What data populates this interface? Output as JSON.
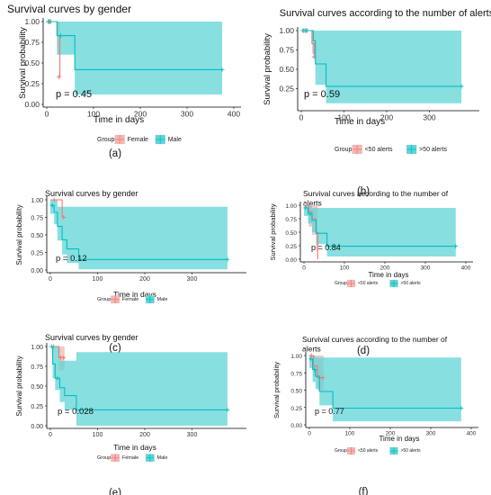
{
  "chart_data": [
    {
      "type": "line",
      "title": "Survival curves by gender",
      "xlabel": "Time in days",
      "ylabel": "Survival probability",
      "xlim": [
        0,
        400
      ],
      "ylim": [
        0,
        1
      ],
      "xticks": [
        0,
        100,
        200,
        300,
        400
      ],
      "yticks": [
        "0.00",
        "0.25",
        "0.50",
        "0.75",
        "1.00"
      ],
      "pvalue": "p = 0.45",
      "legend_title": "Group",
      "legend": [
        "Female",
        "Male"
      ],
      "series": [
        {
          "name": "Female",
          "color": "#f8766d",
          "steps": [
            [
              0,
              1.0
            ],
            [
              12,
              1.0
            ],
            [
              22,
              0.83
            ],
            [
              28,
              0.33
            ]
          ],
          "band": [
            [
              0,
              1.0,
              1.0
            ],
            [
              12,
              1.0,
              1.0
            ],
            [
              22,
              0.6,
              1.0
            ],
            [
              28,
              0.05,
              1.0
            ]
          ],
          "censor": [
            [
              5,
              1.0
            ],
            [
              9,
              1.0
            ],
            [
              26,
              0.33
            ]
          ]
        },
        {
          "name": "Male",
          "color": "#00bfc4",
          "steps": [
            [
              0,
              1.0
            ],
            [
              15,
              1.0
            ],
            [
              22,
              0.83
            ],
            [
              60,
              0.42
            ],
            [
              375,
              0.42
            ]
          ],
          "band": [
            [
              0,
              1.0,
              1.0
            ],
            [
              15,
              1.0,
              1.0
            ],
            [
              22,
              0.6,
              1.0
            ],
            [
              60,
              0.12,
              1.0
            ],
            [
              375,
              0.12,
              1.0
            ]
          ],
          "censor": [
            [
              3,
              1.0
            ],
            [
              7,
              1.0
            ],
            [
              30,
              0.83
            ],
            [
              375,
              0.42
            ]
          ]
        }
      ]
    },
    {
      "type": "line",
      "title": "Survival curves according to the number of alerts",
      "xlabel": "Time in days",
      "ylabel": "Survival probability",
      "xlim": [
        0,
        400
      ],
      "ylim": [
        0,
        1
      ],
      "xticks": [
        0,
        100,
        200,
        300
      ],
      "yticks": [
        "0.25",
        "0.50",
        "0.75",
        "1.00"
      ],
      "pvalue": "p = 0.59",
      "legend_title": "Group",
      "legend": [
        "<50 alerts",
        ">50 alerts"
      ],
      "series": [
        {
          "name": "<50 alerts",
          "color": "#f8766d",
          "steps": [
            [
              0,
              1.0
            ],
            [
              20,
              1.0
            ],
            [
              25,
              0.83
            ],
            [
              30,
              0.66
            ]
          ],
          "band": [
            [
              0,
              1.0,
              1.0
            ],
            [
              20,
              1.0,
              1.0
            ],
            [
              25,
              0.7,
              1.0
            ],
            [
              30,
              0.3,
              1.0
            ]
          ],
          "censor": [
            [
              6,
              1.0
            ],
            [
              12,
              1.0
            ],
            [
              30,
              0.66
            ]
          ]
        },
        {
          "name": ">50 alerts",
          "color": "#00bfc4",
          "steps": [
            [
              0,
              1.0
            ],
            [
              20,
              1.0
            ],
            [
              28,
              0.87
            ],
            [
              33,
              0.57
            ],
            [
              58,
              0.28
            ],
            [
              375,
              0.28
            ]
          ],
          "band": [
            [
              0,
              1.0,
              1.0
            ],
            [
              20,
              1.0,
              1.0
            ],
            [
              28,
              0.7,
              1.0
            ],
            [
              33,
              0.3,
              1.0
            ],
            [
              58,
              0.06,
              1.0
            ],
            [
              375,
              0.06,
              1.0
            ]
          ],
          "censor": [
            [
              4,
              1.0
            ],
            [
              9,
              1.0
            ],
            [
              14,
              1.0
            ],
            [
              375,
              0.28
            ]
          ]
        }
      ]
    },
    {
      "type": "line",
      "title": "Survival curves by gender",
      "xlabel": "Time in days",
      "ylabel": "Survival probability",
      "xlim": [
        0,
        400
      ],
      "ylim": [
        0,
        1
      ],
      "xticks": [
        0,
        100,
        200,
        300
      ],
      "yticks": [
        "0.00",
        "0.25",
        "0.50",
        "0.75",
        "1.00"
      ],
      "pvalue": "p = 0.12",
      "legend_title": "Group",
      "legend": [
        "Female",
        "Male"
      ],
      "series": [
        {
          "name": "Female",
          "color": "#f8766d",
          "steps": [
            [
              0,
              1.0
            ],
            [
              15,
              1.0
            ],
            [
              25,
              0.75
            ]
          ],
          "band": [
            [
              0,
              1.0,
              1.0
            ],
            [
              15,
              1.0,
              1.0
            ],
            [
              25,
              0.4,
              1.0
            ]
          ],
          "censor": [
            [
              8,
              1.0
            ],
            [
              28,
              0.75
            ]
          ]
        },
        {
          "name": "Male",
          "color": "#00bfc4",
          "steps": [
            [
              0,
              0.92
            ],
            [
              8,
              0.82
            ],
            [
              15,
              0.62
            ],
            [
              25,
              0.43
            ],
            [
              35,
              0.3
            ],
            [
              60,
              0.15
            ],
            [
              375,
              0.15
            ]
          ],
          "band": [
            [
              0,
              0.8,
              1.0
            ],
            [
              8,
              0.65,
              1.0
            ],
            [
              15,
              0.42,
              0.9
            ],
            [
              25,
              0.22,
              0.9
            ],
            [
              35,
              0.1,
              0.9
            ],
            [
              60,
              0.01,
              0.9
            ],
            [
              375,
              0.01,
              0.9
            ]
          ],
          "censor": [
            [
              4,
              0.92
            ],
            [
              375,
              0.15
            ]
          ]
        }
      ]
    },
    {
      "type": "line",
      "title": "Survival curves according to the number of alerts",
      "xlabel": "Time in days",
      "ylabel": "Survival probability",
      "xlim": [
        0,
        400
      ],
      "ylim": [
        0,
        1
      ],
      "xticks": [
        0,
        100,
        200,
        300,
        400
      ],
      "yticks": [
        "0.00",
        "0.25",
        "0.50",
        "0.75",
        "1.00"
      ],
      "pvalue": "p = 0.84",
      "legend_title": "Group",
      "legend": [
        "<50 alerts",
        ">50 alerts"
      ],
      "series": [
        {
          "name": "<50 alerts",
          "color": "#f8766d",
          "steps": [
            [
              0,
              1.0
            ],
            [
              12,
              0.88
            ],
            [
              20,
              0.75
            ],
            [
              30,
              0.5
            ],
            [
              34,
              0.0
            ]
          ],
          "band": [
            [
              0,
              1.0,
              1.0
            ],
            [
              12,
              0.6,
              1.0
            ],
            [
              20,
              0.45,
              1.0
            ],
            [
              30,
              0.15,
              1.0
            ],
            [
              34,
              0.0,
              1.0
            ]
          ],
          "censor": [
            [
              6,
              1.0
            ]
          ]
        },
        {
          "name": ">50 alerts",
          "color": "#00bfc4",
          "steps": [
            [
              0,
              0.95
            ],
            [
              10,
              0.84
            ],
            [
              20,
              0.72
            ],
            [
              30,
              0.48
            ],
            [
              57,
              0.24
            ],
            [
              375,
              0.24
            ]
          ],
          "band": [
            [
              0,
              0.8,
              1.0
            ],
            [
              10,
              0.66,
              1.0
            ],
            [
              20,
              0.5,
              0.95
            ],
            [
              30,
              0.28,
              0.95
            ],
            [
              57,
              0.05,
              0.95
            ],
            [
              375,
              0.05,
              0.95
            ]
          ],
          "censor": [
            [
              4,
              0.95
            ],
            [
              15,
              0.84
            ],
            [
              375,
              0.24
            ]
          ]
        }
      ]
    },
    {
      "type": "line",
      "title": "Survival curves by gender",
      "xlabel": "Time in days",
      "ylabel": "Survival probability",
      "xlim": [
        0,
        400
      ],
      "ylim": [
        0,
        1
      ],
      "xticks": [
        0,
        100,
        200,
        300
      ],
      "yticks": [
        "0.00",
        "0.25",
        "0.50",
        "0.75",
        "1.00"
      ],
      "pvalue": "p = 0.028",
      "legend_title": "Group",
      "legend": [
        "Female",
        "Male"
      ],
      "series": [
        {
          "name": "Female",
          "color": "#f8766d",
          "steps": [
            [
              0,
              1.0
            ],
            [
              12,
              1.0
            ],
            [
              18,
              0.86
            ],
            [
              30,
              0.86
            ]
          ],
          "band": [
            [
              0,
              1.0,
              1.0
            ],
            [
              12,
              1.0,
              1.0
            ],
            [
              18,
              0.7,
              1.0
            ],
            [
              30,
              0.7,
              1.0
            ]
          ],
          "censor": [
            [
              7,
              1.0
            ],
            [
              22,
              0.86
            ],
            [
              28,
              0.86
            ]
          ]
        },
        {
          "name": "Male",
          "color": "#00bfc4",
          "steps": [
            [
              0,
              1.0
            ],
            [
              5,
              0.78
            ],
            [
              10,
              0.6
            ],
            [
              20,
              0.48
            ],
            [
              30,
              0.38
            ],
            [
              55,
              0.2
            ],
            [
              375,
              0.2
            ]
          ],
          "band": [
            [
              0,
              1.0,
              1.0
            ],
            [
              5,
              0.6,
              1.0
            ],
            [
              10,
              0.45,
              1.0
            ],
            [
              20,
              0.3,
              0.82
            ],
            [
              30,
              0.2,
              0.82
            ],
            [
              55,
              0.0,
              0.93
            ],
            [
              375,
              0.0,
              0.93
            ]
          ],
          "censor": [
            [
              3,
              1.0
            ],
            [
              15,
              0.6
            ],
            [
              375,
              0.2
            ]
          ]
        }
      ]
    },
    {
      "type": "line",
      "title": "Survival curves according to the number of alerts",
      "xlabel": "Time in days",
      "ylabel": "Survival probability",
      "xlim": [
        0,
        400
      ],
      "ylim": [
        0,
        1
      ],
      "xticks": [
        0,
        100,
        200,
        300,
        400
      ],
      "yticks": [
        "0.00",
        "0.25",
        "0.50",
        "0.75",
        "1.00"
      ],
      "pvalue": "p = 0.77",
      "legend_title": "Group",
      "legend": [
        "<50 alerts",
        ">50 alerts"
      ],
      "series": [
        {
          "name": "<50 alerts",
          "color": "#f8766d",
          "steps": [
            [
              0,
              1.0
            ],
            [
              10,
              0.85
            ],
            [
              20,
              0.68
            ],
            [
              35,
              0.68
            ]
          ],
          "band": [
            [
              0,
              1.0,
              1.0
            ],
            [
              10,
              0.7,
              1.0
            ],
            [
              20,
              0.5,
              1.0
            ],
            [
              35,
              0.5,
              1.0
            ]
          ],
          "censor": [
            [
              5,
              1.0
            ],
            [
              25,
              0.68
            ],
            [
              33,
              0.68
            ]
          ]
        },
        {
          "name": ">50 alerts",
          "color": "#00bfc4",
          "steps": [
            [
              0,
              0.95
            ],
            [
              8,
              0.8
            ],
            [
              15,
              0.7
            ],
            [
              25,
              0.48
            ],
            [
              58,
              0.24
            ],
            [
              375,
              0.24
            ]
          ],
          "band": [
            [
              0,
              0.82,
              1.0
            ],
            [
              8,
              0.62,
              1.0
            ],
            [
              15,
              0.52,
              0.97
            ],
            [
              25,
              0.28,
              0.97
            ],
            [
              58,
              0.05,
              0.97
            ],
            [
              375,
              0.05,
              0.97
            ]
          ],
          "censor": [
            [
              4,
              0.95
            ],
            [
              12,
              0.8
            ],
            [
              375,
              0.24
            ]
          ]
        }
      ]
    }
  ],
  "captions": [
    "(a)",
    "(b)",
    "(c)",
    "(d)",
    "(e)",
    "(f)"
  ]
}
